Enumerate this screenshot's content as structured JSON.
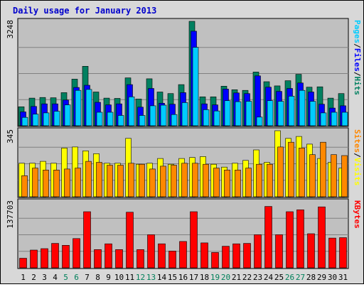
{
  "chart_data": {
    "title": "Daily usage for January 2013",
    "type": "bar",
    "x": [
      "1",
      "2",
      "3",
      "4",
      "5",
      "6",
      "7",
      "8",
      "9",
      "10",
      "11",
      "12",
      "13",
      "14",
      "15",
      "16",
      "17",
      "18",
      "19",
      "20",
      "21",
      "22",
      "23",
      "24",
      "25",
      "26",
      "27",
      "28",
      "29",
      "30",
      "31"
    ],
    "weekend_days": [
      "5",
      "6",
      "12",
      "13",
      "19",
      "20",
      "26",
      "27"
    ],
    "colors": {
      "title": "#0000cc",
      "weekday_label": "#000000",
      "weekend_label": "#00805a",
      "pages": "#00ccff",
      "files": "#0000ff",
      "hits": "#008060",
      "sites": "#ff8800",
      "visits": "#ffff00",
      "kbytes": "#ff0000",
      "plot_bg": "#c0c0c0",
      "frame_bg": "#d8d8d8"
    },
    "panels": [
      {
        "id": "hits",
        "ymax_label": "3248",
        "ylim": [
          0,
          3248
        ],
        "right_label": [
          {
            "text": "Pages",
            "color": "#00ccff"
          },
          {
            "text": "/",
            "color": "#000000"
          },
          {
            "text": "Files",
            "color": "#0000ff"
          },
          {
            "text": "/",
            "color": "#000000"
          },
          {
            "text": "Hits",
            "color": "#008060"
          }
        ],
        "series": [
          {
            "name": "Hits",
            "color": "#008060",
            "values": [
              590,
              860,
              880,
              870,
              1030,
              1450,
              1850,
              1050,
              860,
              850,
              1490,
              830,
              1460,
              1050,
              1000,
              1280,
              3248,
              900,
              900,
              1230,
              1120,
              1100,
              1670,
              1370,
              1240,
              1400,
              1600,
              1200,
              1210,
              860,
              1000
            ]
          },
          {
            "name": "Files",
            "color": "#0000ff",
            "values": [
              430,
              600,
              680,
              680,
              800,
              1190,
              1260,
              730,
              650,
              680,
              1280,
              580,
              1160,
              700,
              670,
              1030,
              2940,
              680,
              650,
              1140,
              1020,
              1000,
              1550,
              1200,
              1070,
              1160,
              1330,
              1050,
              670,
              550,
              620
            ]
          },
          {
            "name": "Pages",
            "color": "#00ccff",
            "values": [
              260,
              360,
              400,
              450,
              650,
              1100,
              1130,
              420,
              420,
              320,
              900,
              320,
              620,
              640,
              350,
              720,
              2440,
              500,
              460,
              780,
              750,
              760,
              270,
              780,
              760,
              920,
              1100,
              760,
              400,
              420,
              420
            ]
          }
        ]
      },
      {
        "id": "visits",
        "ymax_label": "345",
        "ylim": [
          0,
          345
        ],
        "right_label": [
          {
            "text": "Sites",
            "color": "#ff8800"
          },
          {
            "text": "/",
            "color": "#000000"
          },
          {
            "text": "Visits",
            "color": "#ffff00"
          }
        ],
        "series": [
          {
            "name": "Visits",
            "color": "#ffff00",
            "values": [
              175,
              175,
              185,
              175,
              255,
              260,
              240,
              225,
              175,
              175,
              305,
              170,
              175,
              200,
              170,
              200,
              205,
              210,
              170,
              155,
              175,
              190,
              245,
              180,
              345,
              305,
              315,
              275,
              200,
              180,
              150
            ]
          },
          {
            "name": "Sites",
            "color": "#ff8800",
            "values": [
              110,
              150,
              140,
              140,
              145,
              150,
              185,
              180,
              165,
              165,
              175,
              170,
              145,
              160,
              165,
              175,
              175,
              170,
              150,
              140,
              140,
              150,
              170,
              170,
              260,
              285,
              255,
              220,
              285,
              220,
              215
            ]
          }
        ]
      },
      {
        "id": "kbytes",
        "ymax_label": "137703",
        "ylim": [
          0,
          137703
        ],
        "right_label": [
          {
            "text": "KBytes",
            "color": "#ff0000"
          }
        ],
        "series": [
          {
            "name": "KBytes",
            "color": "#ff0000",
            "values": [
              20000,
              37000,
              40000,
              51000,
              47000,
              61000,
              117000,
              38000,
              50000,
              38000,
              116000,
              38000,
              69000,
              50000,
              35000,
              55000,
              117000,
              52000,
              32000,
              45000,
              50000,
              51000,
              69000,
              128000,
              69000,
              117000,
              121000,
              71000,
              127000,
              62000,
              63000
            ]
          }
        ]
      }
    ]
  }
}
